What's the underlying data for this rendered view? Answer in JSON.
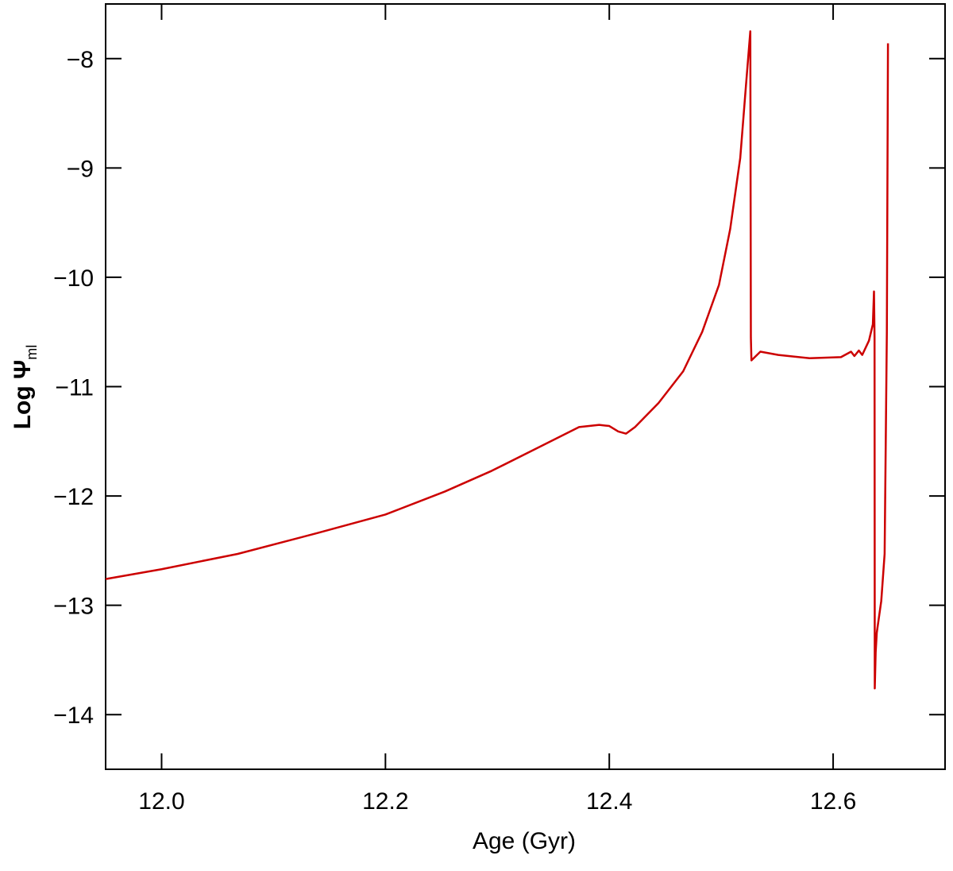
{
  "chart_data": {
    "type": "line",
    "x_label": "Age (Gyr)",
    "y_label": {
      "text": "Log Ψ",
      "subscript": "ml"
    },
    "xlim": [
      11.95,
      12.7
    ],
    "xticks": [
      {
        "value": 12.0,
        "label": "12.0"
      },
      {
        "value": 12.2,
        "label": "12.2"
      },
      {
        "value": 12.4,
        "label": "12.4"
      },
      {
        "value": 12.6,
        "label": "12.6"
      }
    ],
    "ylim": [
      -14.5,
      -7.5
    ],
    "yticks": [
      {
        "value": -8,
        "label": "−8"
      },
      {
        "value": -9,
        "label": "−9"
      },
      {
        "value": -10,
        "label": "−10"
      },
      {
        "value": -11,
        "label": "−11"
      },
      {
        "value": -12,
        "label": "−12"
      },
      {
        "value": -13,
        "label": "−13"
      },
      {
        "value": -14,
        "label": "−14"
      }
    ],
    "series": [
      {
        "color": "#cc0000",
        "x": [
          11.95,
          12.0,
          12.068,
          12.139,
          12.2,
          12.253,
          12.295,
          12.338,
          12.373,
          12.391,
          12.4,
          12.408,
          12.415,
          12.423,
          12.444,
          12.466,
          12.483,
          12.498,
          12.508,
          12.517,
          12.522,
          12.526,
          12.5265,
          12.527,
          12.535,
          12.551,
          12.579,
          12.607,
          12.616,
          12.619,
          12.623,
          12.626,
          12.632,
          12.6355,
          12.6365,
          12.637,
          12.6372,
          12.638,
          12.639,
          12.643,
          12.646,
          12.648,
          12.649
        ],
        "values": [
          -12.76,
          -12.67,
          -12.53,
          -12.34,
          -12.17,
          -11.96,
          -11.77,
          -11.55,
          -11.37,
          -11.35,
          -11.36,
          -11.41,
          -11.43,
          -11.37,
          -11.15,
          -10.86,
          -10.5,
          -10.07,
          -9.56,
          -8.91,
          -8.26,
          -7.75,
          -10.55,
          -10.76,
          -10.68,
          -10.71,
          -10.74,
          -10.73,
          -10.68,
          -10.72,
          -10.67,
          -10.71,
          -10.58,
          -10.43,
          -10.13,
          -10.55,
          -13.76,
          -13.43,
          -13.25,
          -12.96,
          -12.53,
          -10.5,
          -7.86
        ]
      }
    ]
  }
}
